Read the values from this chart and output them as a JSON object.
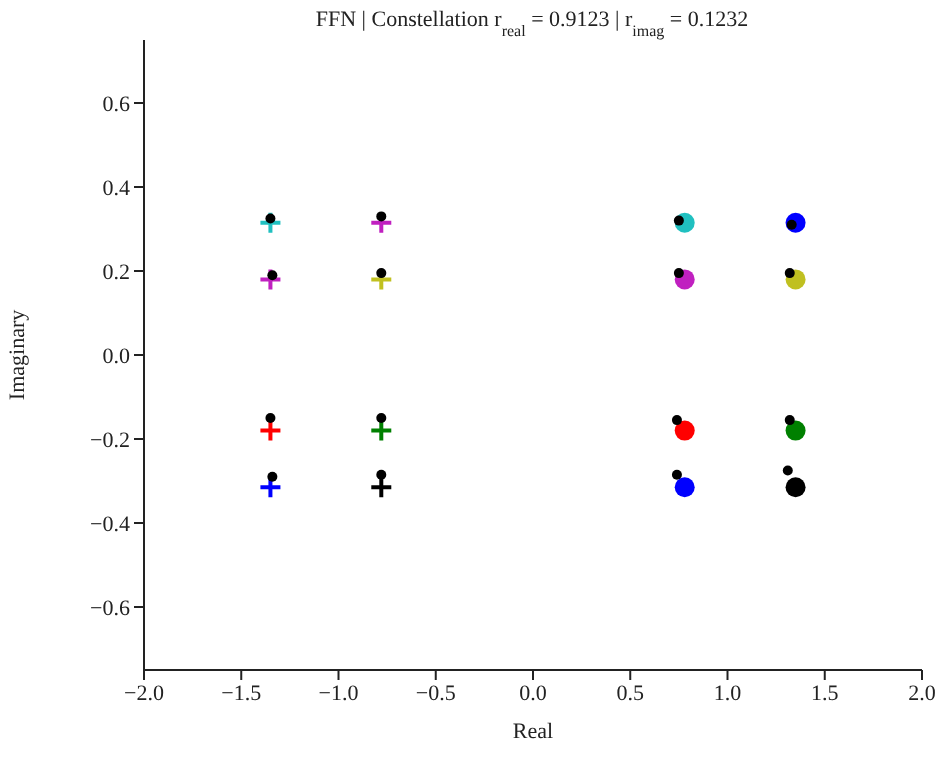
{
  "chart_data": {
    "type": "scatter",
    "title": "FFN | Constellation  r$_{real}$ = 0.9123 | r$_{imag}$ = 0.1232",
    "xlabel": "Real",
    "ylabel": "Imaginary",
    "xlim": [
      -2,
      2
    ],
    "xticks": [
      {
        "value": -2,
        "label": "−2.0"
      },
      {
        "value": -1.5,
        "label": "−1.5"
      },
      {
        "value": -1,
        "label": "−1.0"
      },
      {
        "value": -0.5,
        "label": "−0.5"
      },
      {
        "value": 0,
        "label": "0.0"
      },
      {
        "value": 0.5,
        "label": "0.5"
      },
      {
        "value": 1,
        "label": "1.0"
      },
      {
        "value": 1.5,
        "label": "1.5"
      },
      {
        "value": 2,
        "label": "2.0"
      }
    ],
    "ylim": [
      -0.75,
      0.75
    ],
    "yticks": [
      {
        "value": -0.6,
        "label": "−0.6"
      },
      {
        "value": -0.4,
        "label": "−0.4"
      },
      {
        "value": -0.2,
        "label": "−0.2"
      },
      {
        "value": 0,
        "label": "0.0"
      },
      {
        "value": 0.2,
        "label": "0.2"
      },
      {
        "value": 0.4,
        "label": "0.4"
      },
      {
        "value": 0.6,
        "label": "0.6"
      }
    ],
    "grid": false,
    "legend": false,
    "series": [
      {
        "marker": "cross",
        "x": [
          -1.35,
          -0.78,
          -1.35,
          -0.78,
          -1.35,
          -0.78,
          -1.35,
          -0.78
        ],
        "values": [
          0.315,
          0.315,
          0.18,
          0.18,
          -0.18,
          -0.18,
          -0.315,
          -0.315
        ],
        "colors": [
          "#20c0c0",
          "#c020c0",
          "#c020c0",
          "#c0c020",
          "#ff0000",
          "#008000",
          "#0000ff",
          "#000000"
        ]
      },
      {
        "marker": "circle",
        "x": [
          0.78,
          1.35,
          0.78,
          1.35,
          0.78,
          1.35,
          0.78,
          1.35
        ],
        "values": [
          0.315,
          0.315,
          0.18,
          0.18,
          -0.18,
          -0.18,
          -0.315,
          -0.315
        ],
        "colors": [
          "#20c0c0",
          "#0000ff",
          "#c020c0",
          "#c0c020",
          "#ff0000",
          "#008000",
          "#0000ff",
          "#000000"
        ]
      },
      {
        "marker": "circle",
        "color": "#000000",
        "x": [
          -1.35,
          -0.78,
          -1.34,
          -0.78,
          -1.35,
          -0.78,
          -1.34,
          -0.78,
          0.75,
          1.33,
          0.75,
          1.32,
          0.74,
          1.32,
          0.74,
          1.31
        ],
        "values": [
          0.325,
          0.33,
          0.19,
          0.195,
          -0.15,
          -0.15,
          -0.29,
          -0.285,
          0.32,
          0.31,
          0.195,
          0.195,
          -0.155,
          -0.155,
          -0.285,
          -0.275
        ]
      }
    ]
  }
}
